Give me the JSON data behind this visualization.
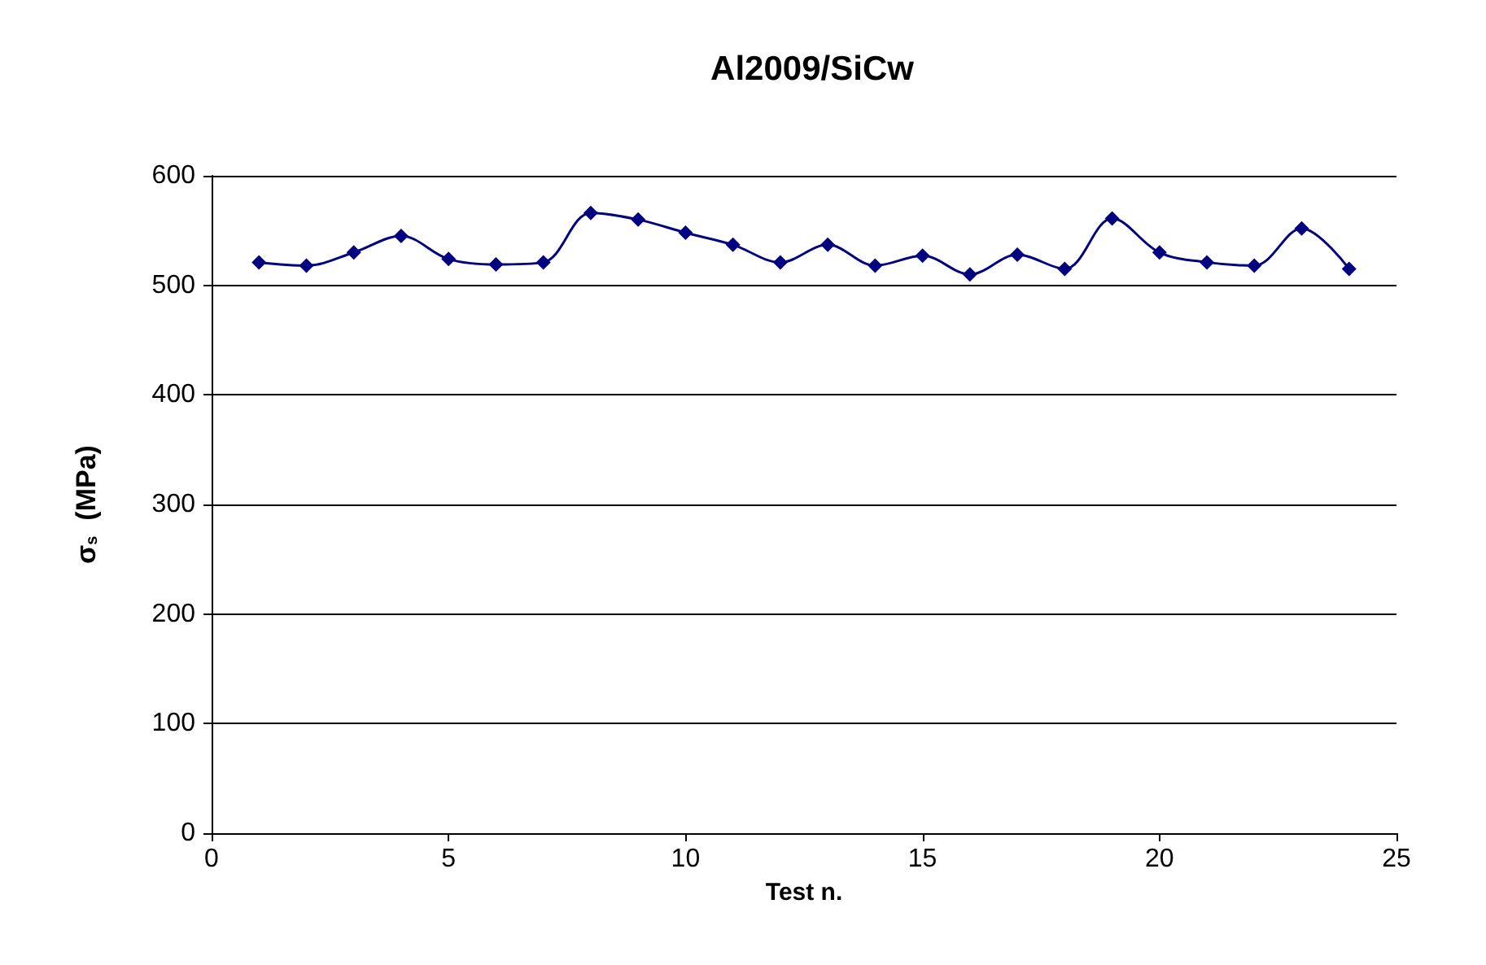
{
  "chart_data": {
    "type": "line",
    "title": "Al2009/SiCw",
    "xlabel": "Test n.",
    "ylabel": "σ$_{s}$  (MPa)",
    "x": [
      1,
      2,
      3,
      4,
      5,
      6,
      7,
      8,
      9,
      10,
      11,
      12,
      13,
      14,
      15,
      16,
      17,
      18,
      19,
      20,
      21,
      22,
      23,
      24
    ],
    "series": [
      {
        "color": "#000080",
        "values": [
          521,
          518,
          530,
          545,
          524,
          519,
          521,
          566,
          560,
          548,
          537,
          521,
          537,
          518,
          527,
          510,
          528,
          515,
          561,
          530,
          521,
          518,
          552,
          515
        ]
      }
    ],
    "xlim": [
      0,
      25
    ],
    "xticks": [
      0,
      5,
      10,
      15,
      20,
      25
    ],
    "ylim": [
      0,
      600
    ],
    "yticks": [
      0,
      100,
      200,
      300,
      400,
      500,
      600
    ],
    "grid": "y",
    "marker": "diamond",
    "line_style": "solid"
  }
}
